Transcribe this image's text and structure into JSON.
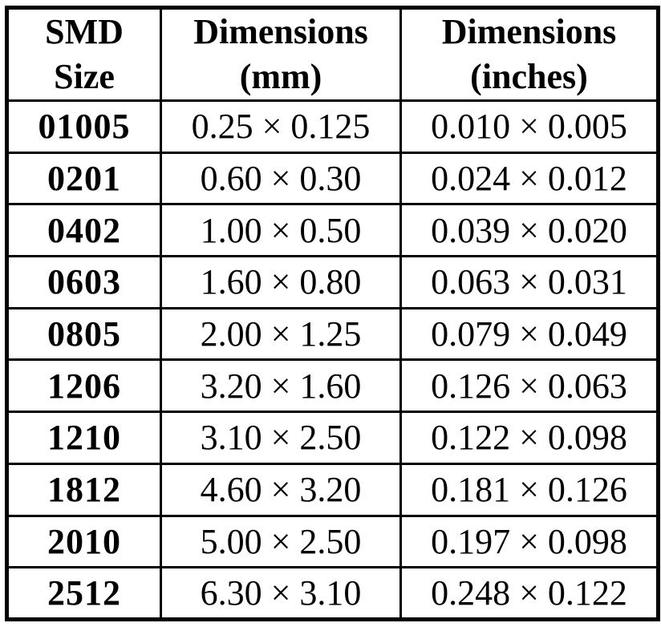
{
  "colors": {
    "background": "#ffffff",
    "border": "#000000",
    "text": "#000000"
  },
  "table": {
    "headers": [
      {
        "line1": "SMD",
        "line2": "Size"
      },
      {
        "line1": "Dimensions",
        "line2": "(mm)"
      },
      {
        "line1": "Dimensions",
        "line2": "(inches)"
      }
    ],
    "rows": [
      {
        "size": "01005",
        "mm": "0.25 × 0.125",
        "inches": "0.010 × 0.005"
      },
      {
        "size": "0201",
        "mm": "0.60 × 0.30",
        "inches": "0.024 × 0.012"
      },
      {
        "size": "0402",
        "mm": "1.00 × 0.50",
        "inches": "0.039 × 0.020"
      },
      {
        "size": "0603",
        "mm": "1.60 × 0.80",
        "inches": "0.063 × 0.031"
      },
      {
        "size": "0805",
        "mm": "2.00 × 1.25",
        "inches": "0.079 × 0.049"
      },
      {
        "size": "1206",
        "mm": "3.20 × 1.60",
        "inches": "0.126 × 0.063"
      },
      {
        "size": "1210",
        "mm": "3.10 × 2.50",
        "inches": "0.122 × 0.098"
      },
      {
        "size": "1812",
        "mm": "4.60 × 3.20",
        "inches": "0.181 × 0.126"
      },
      {
        "size": "2010",
        "mm": "5.00 × 2.50",
        "inches": "0.197 × 0.098"
      },
      {
        "size": "2512",
        "mm": "6.30 × 3.10",
        "inches": "0.248 × 0.122"
      }
    ]
  }
}
